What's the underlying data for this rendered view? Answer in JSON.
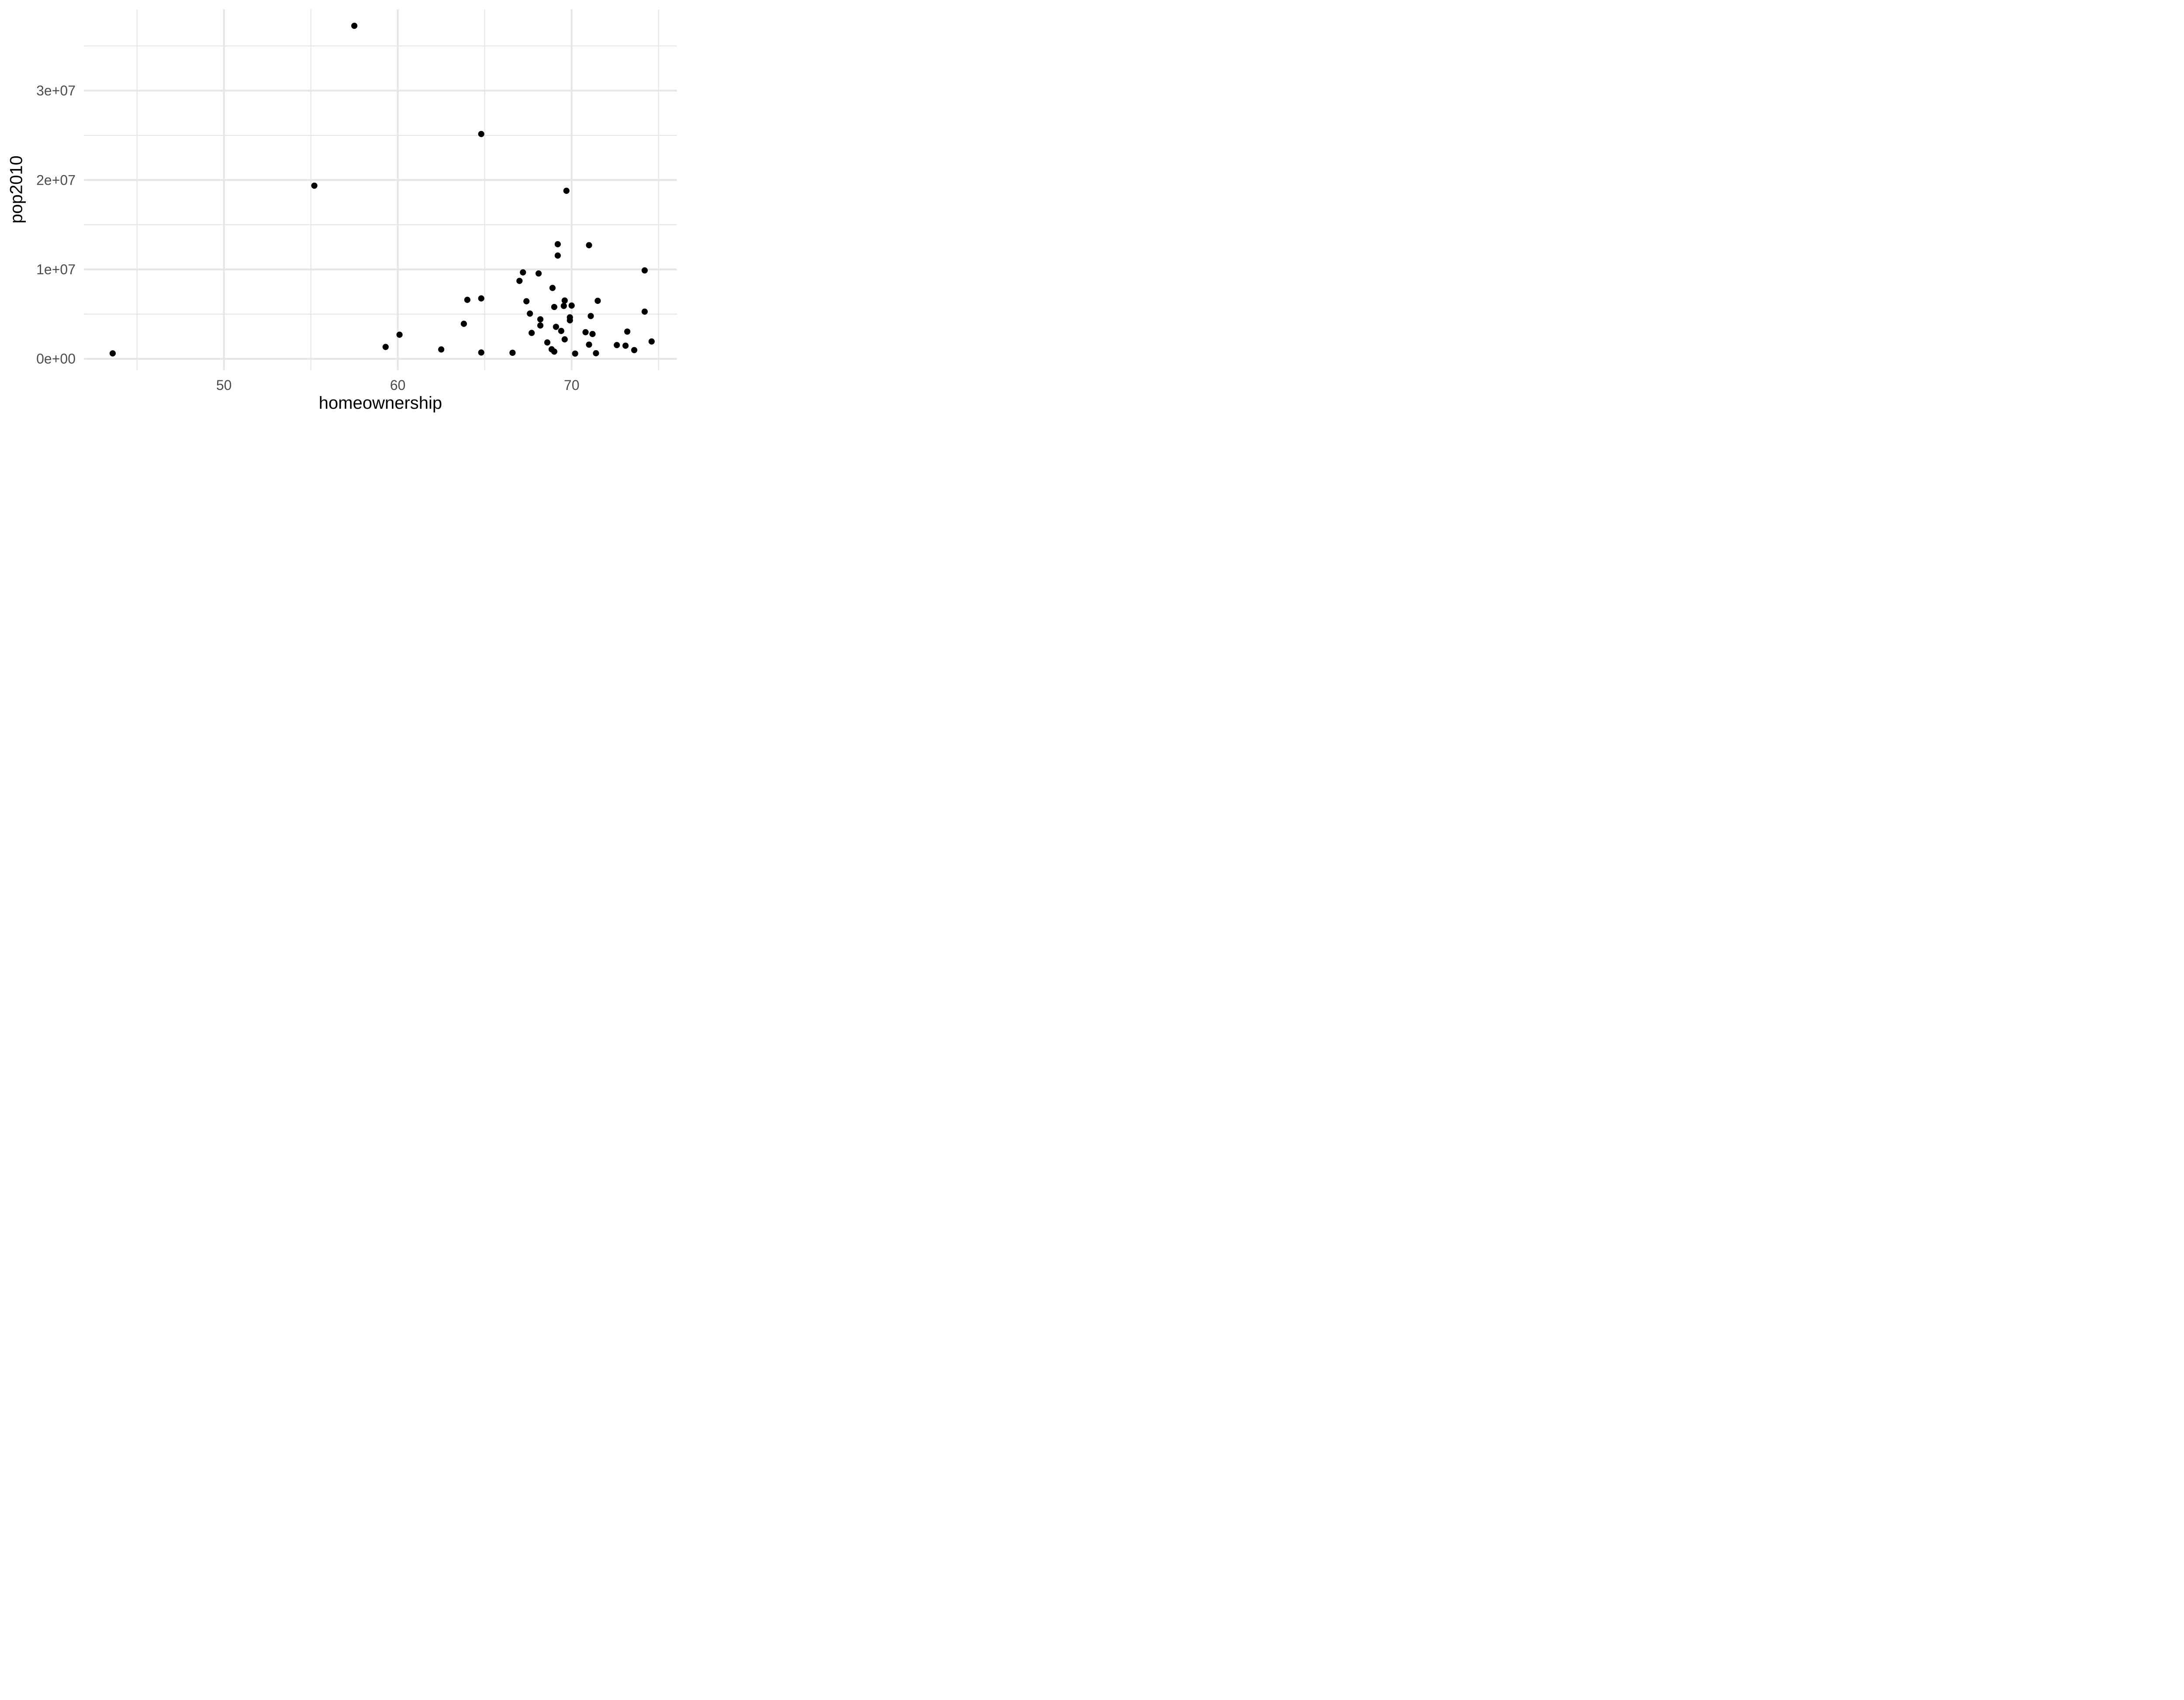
{
  "chart_data": {
    "type": "scatter",
    "title": "",
    "xlabel": "homeownership",
    "ylabel": "pop2010",
    "xlim": [
      41.95,
      76.05
    ],
    "ylim": [
      -1270000,
      39100000
    ],
    "grid": "major+minor",
    "legend": "none",
    "background_color": "#ffffff",
    "point_color": "#000000",
    "grid_color": "#E6E6E6",
    "tick_label_color": "#4D4D4D",
    "axis_title_color": "#000000",
    "x_major_ticks": [
      {
        "value": 50,
        "label": "50"
      },
      {
        "value": 60,
        "label": "60"
      },
      {
        "value": 70,
        "label": "70"
      }
    ],
    "y_major_ticks": [
      {
        "value": 0,
        "label": "0e+00"
      },
      {
        "value": 10000000,
        "label": "1e+07"
      },
      {
        "value": 20000000,
        "label": "2e+07"
      },
      {
        "value": 30000000,
        "label": "3e+07"
      }
    ],
    "x_minor_ticks": [
      45,
      55,
      65,
      75
    ],
    "y_minor_ticks": [
      5000000,
      15000000,
      25000000,
      35000000
    ],
    "points": [
      [
        43.6,
        610000
      ],
      [
        55.2,
        19370000
      ],
      [
        57.5,
        37250000
      ],
      [
        59.3,
        1330000
      ],
      [
        60.1,
        2700000
      ],
      [
        62.5,
        1050000
      ],
      [
        63.8,
        3920000
      ],
      [
        64.0,
        6600000
      ],
      [
        64.8,
        710000
      ],
      [
        64.8,
        6760000
      ],
      [
        64.8,
        25150000
      ],
      [
        66.6,
        680000
      ],
      [
        67.0,
        8720000
      ],
      [
        67.2,
        9670000
      ],
      [
        67.4,
        6440000
      ],
      [
        67.6,
        5060000
      ],
      [
        67.7,
        2900000
      ],
      [
        68.1,
        9550000
      ],
      [
        68.2,
        3730000
      ],
      [
        68.2,
        4420000
      ],
      [
        68.6,
        1830000
      ],
      [
        68.85,
        1070000
      ],
      [
        68.9,
        7930000
      ],
      [
        69.0,
        810000
      ],
      [
        69.0,
        5800000
      ],
      [
        69.1,
        3580000
      ],
      [
        69.2,
        11550000
      ],
      [
        69.2,
        12820000
      ],
      [
        69.4,
        3120000
      ],
      [
        69.55,
        5920000
      ],
      [
        69.6,
        2180000
      ],
      [
        69.6,
        6520000
      ],
      [
        69.7,
        18800000
      ],
      [
        69.9,
        4640000
      ],
      [
        69.9,
        4310000
      ],
      [
        70.0,
        5960000
      ],
      [
        70.2,
        590000
      ],
      [
        70.8,
        2980000
      ],
      [
        71.0,
        12710000
      ],
      [
        71.0,
        1590000
      ],
      [
        71.1,
        4790000
      ],
      [
        71.2,
        2780000
      ],
      [
        71.4,
        630000
      ],
      [
        71.5,
        6490000
      ],
      [
        72.6,
        1540000
      ],
      [
        73.1,
        1470000
      ],
      [
        73.2,
        3050000
      ],
      [
        73.6,
        980000
      ],
      [
        74.2,
        5280000
      ],
      [
        74.2,
        9890000
      ],
      [
        74.6,
        1940000
      ]
    ]
  }
}
